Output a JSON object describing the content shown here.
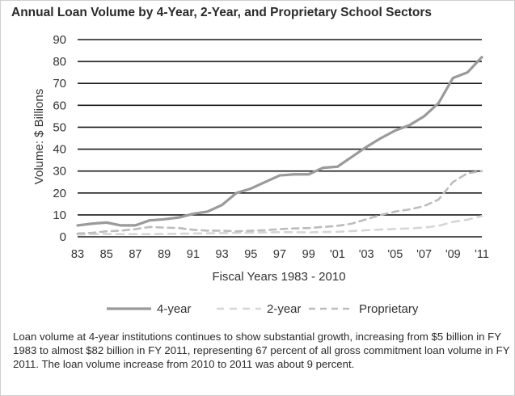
{
  "chart_data": {
    "type": "line",
    "title": "Annual Loan Volume by 4-Year, 2-Year, and Proprietary School Sectors",
    "xlabel": "Fiscal Years 1983 - 2010",
    "ylabel": "Volume:  $ Billions",
    "ylim": [
      0,
      90
    ],
    "xlim": [
      1983,
      2011
    ],
    "yticks": [
      "0",
      "10",
      "20",
      "30",
      "40",
      "50",
      "60",
      "70",
      "80",
      "90"
    ],
    "xticks": [
      "83",
      "85",
      "87",
      "89",
      "91",
      "93",
      "95",
      "97",
      "99",
      "'01",
      "'03",
      "'05",
      "'07",
      "'09",
      "'11"
    ],
    "grid": true,
    "legend_position": "bottom",
    "x": [
      1983,
      1984,
      1985,
      1986,
      1987,
      1988,
      1989,
      1990,
      1991,
      1992,
      1993,
      1994,
      1995,
      1996,
      1997,
      1998,
      1999,
      2000,
      2001,
      2002,
      2003,
      2004,
      2005,
      2006,
      2007,
      2008,
      2009,
      2010,
      2011
    ],
    "series": [
      {
        "name": "4-year",
        "color": "#9a9a9a",
        "style": "solid",
        "values": [
          5.2,
          6.0,
          6.5,
          5.2,
          5.2,
          7.5,
          8.0,
          8.8,
          10.5,
          11.5,
          14.5,
          20.0,
          22.0,
          25.0,
          28.0,
          28.5,
          28.5,
          31.5,
          32.0,
          36.5,
          41.0,
          45.0,
          48.5,
          51.0,
          55.0,
          61.0,
          72.5,
          75.0,
          82.0
        ]
      },
      {
        "name": "2-year",
        "color": "#d6d6d6",
        "style": "dashed",
        "values": [
          1.0,
          1.2,
          1.3,
          1.2,
          1.2,
          1.2,
          1.3,
          1.4,
          1.5,
          1.6,
          1.7,
          1.8,
          1.9,
          2.0,
          2.1,
          2.1,
          2.0,
          2.2,
          2.3,
          2.6,
          3.0,
          3.3,
          3.6,
          3.8,
          4.2,
          5.0,
          6.8,
          7.8,
          9.5
        ]
      },
      {
        "name": "Proprietary",
        "color": "#bdbdbd",
        "style": "dashed",
        "values": [
          1.5,
          1.8,
          2.5,
          2.8,
          3.5,
          4.5,
          4.2,
          4.0,
          3.2,
          2.8,
          2.8,
          2.5,
          2.8,
          3.0,
          3.5,
          3.8,
          4.0,
          4.5,
          5.0,
          6.0,
          8.0,
          10.0,
          11.5,
          12.5,
          14.0,
          17.0,
          25.0,
          29.0,
          30.0
        ]
      }
    ]
  },
  "caption": "Loan volume at 4-year institutions continues to show substantial growth, increasing from $5 billion in FY 1983 to almost $82 billion in FY 2011, representing 67 percent of all gross commitment loan volume in FY 2011.  The loan volume increase from 2010 to 2011 was about 9 percent."
}
